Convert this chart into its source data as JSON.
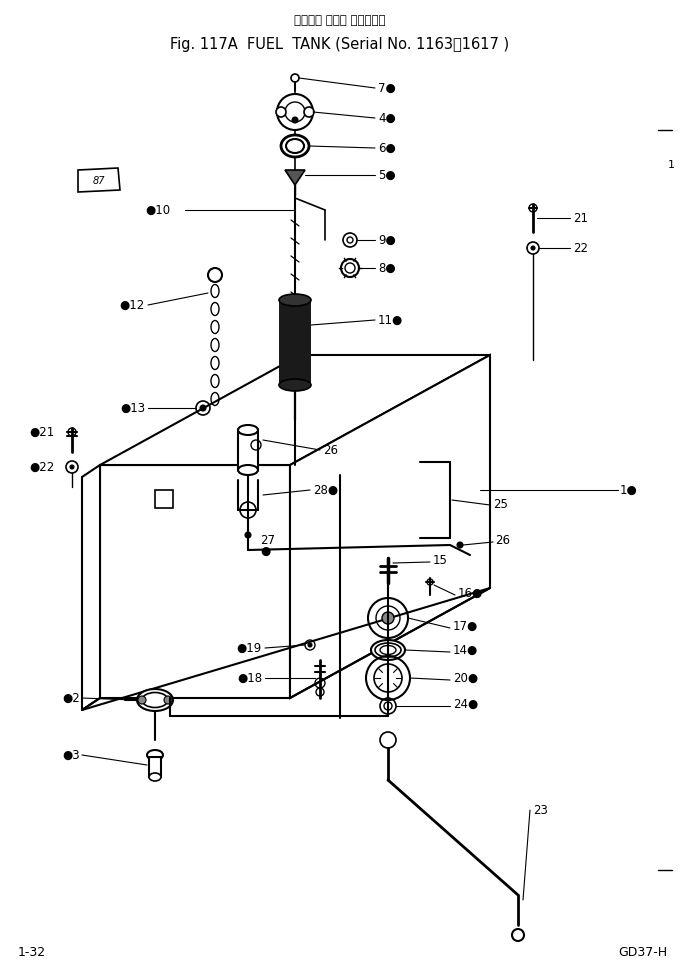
{
  "bg_color": "#ffffff",
  "title_line1": "フュエル タンク （適用号機",
  "title_line2": "Fig. 117A  FUEL  TANK (Serial No. 1163～1617 )",
  "footer_left": "1-32",
  "footer_right": "GD37-H"
}
